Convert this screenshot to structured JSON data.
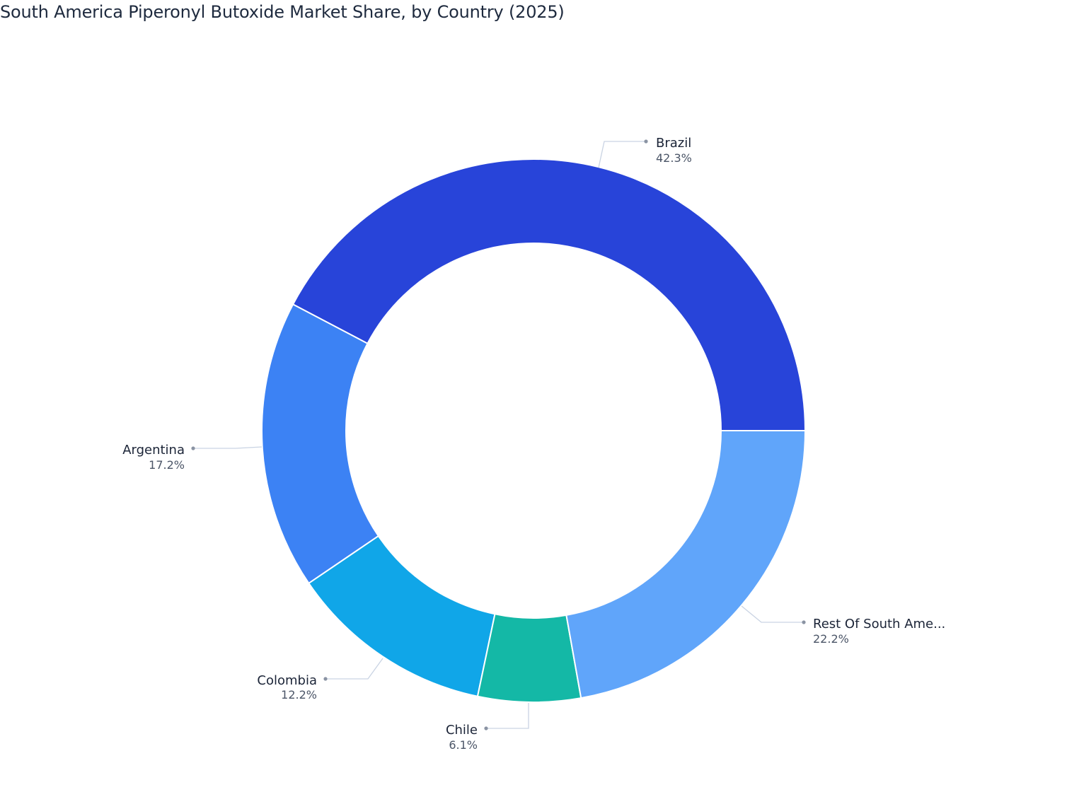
{
  "title": "South America Piperonyl Butoxide Market Share, by Country (2025)",
  "chart_data": {
    "type": "pie",
    "subtype": "donut",
    "title": "South America Piperonyl Butoxide Market Share, by Country (2025)",
    "categories": [
      "Brazil",
      "Argentina",
      "Colombia",
      "Chile",
      "Rest Of South Ame..."
    ],
    "values": [
      42.3,
      17.2,
      12.2,
      6.1,
      22.2
    ],
    "value_labels": [
      "42.3%",
      "17.2%",
      "12.2%",
      "6.1%",
      "22.2%"
    ],
    "colors": [
      "#2844d9",
      "#3c82f4",
      "#10a6e8",
      "#14b8a6",
      "#60a5fa"
    ],
    "unit": "%",
    "legend": "none (outside labels with leader lines)"
  },
  "labels": {
    "brazil": {
      "name": "Brazil",
      "value": "42.3%"
    },
    "argentina": {
      "name": "Argentina",
      "value": "17.2%"
    },
    "colombia": {
      "name": "Colombia",
      "value": "12.2%"
    },
    "chile": {
      "name": "Chile",
      "value": "6.1%"
    },
    "rest": {
      "name": "Rest Of South Ame...",
      "value": "22.2%"
    }
  }
}
